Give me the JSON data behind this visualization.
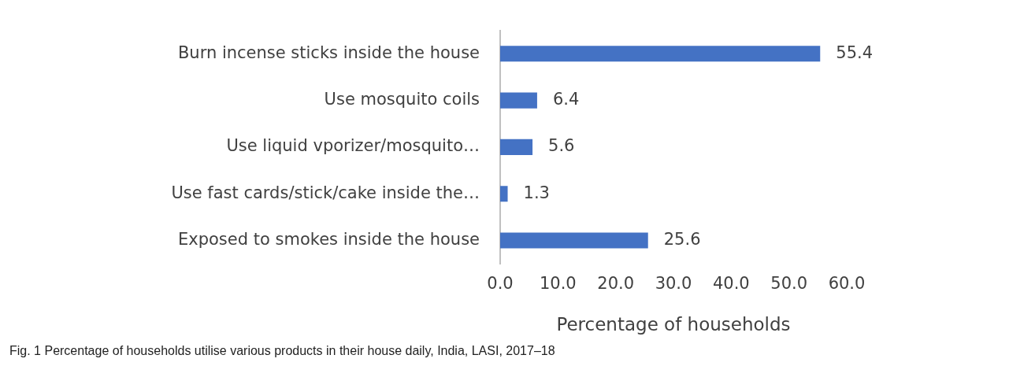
{
  "chart_data": {
    "type": "bar",
    "orientation": "horizontal",
    "categories": [
      "Burn incense sticks inside the house",
      "Use mosquito coils",
      "Use liquid vporizer/mosquito…",
      "Use fast cards/stick/cake inside the…",
      "Exposed to smokes inside the house"
    ],
    "values": [
      55.4,
      6.4,
      5.6,
      1.3,
      25.6
    ],
    "color": "#4472c4",
    "xlim": [
      0,
      60
    ],
    "xticks": [
      {
        "value": 0,
        "label": "0.0"
      },
      {
        "value": 10,
        "label": "10.0"
      },
      {
        "value": 20,
        "label": "20.0"
      },
      {
        "value": 30,
        "label": "30.0"
      },
      {
        "value": 40,
        "label": "40.0"
      },
      {
        "value": 50,
        "label": "50.0"
      },
      {
        "value": 60,
        "label": "60.0"
      }
    ],
    "xlabel": "Percentage of households",
    "data_labels": true,
    "grid": false,
    "legend": false,
    "annotations": [
      "Fig. 1 Percentage of households utilise various products in their house daily, India, LASI, 2017–18"
    ]
  }
}
